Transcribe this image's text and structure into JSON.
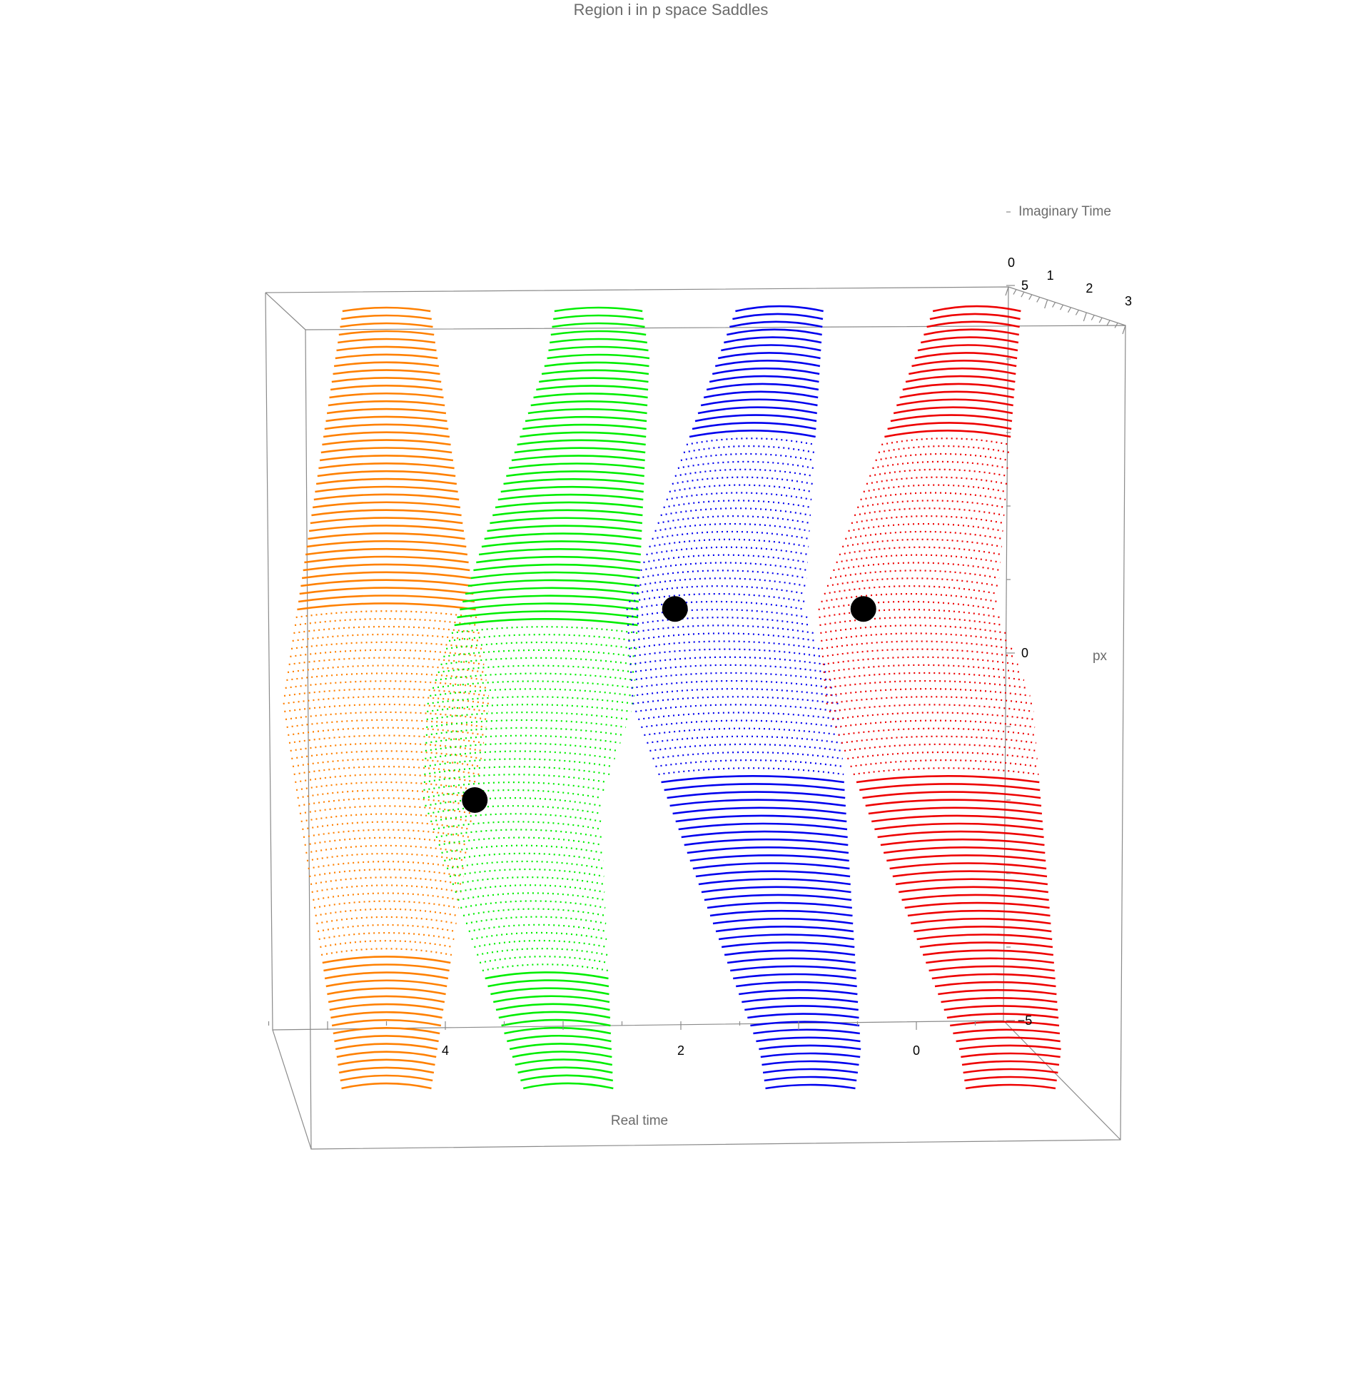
{
  "chart_data": {
    "type": "line",
    "title": "Region i in p space Saddles",
    "xlabel": "Real time",
    "ylabel": "Imaginary Time",
    "zlabel": "px",
    "x_ticks": [
      "4",
      "2",
      "0"
    ],
    "x_tick_values": [
      4,
      2,
      0
    ],
    "y_ticks": [
      "0",
      "1",
      "2",
      "3"
    ],
    "y_tick_values": [
      0,
      1,
      2,
      3
    ],
    "z_ticks": [
      "5",
      "0",
      "−5"
    ],
    "z_tick_values": [
      5,
      0,
      -5
    ],
    "xlim": [
      -0.8,
      5.5
    ],
    "ylim": [
      0,
      3
    ],
    "zlim": [
      -6.5,
      6.5
    ],
    "grid": false,
    "series": [
      {
        "color": "#ff8000",
        "real_time_center": 4.5,
        "saddle": null
      },
      {
        "color": "#00ee00",
        "real_time_center": 2.7,
        "saddle": {
          "real_time": 3.75,
          "px": -2.0
        }
      },
      {
        "color": "#0000ee",
        "real_time_center": 0.9,
        "saddle": {
          "real_time": 2.05,
          "px": 0.6
        }
      },
      {
        "color": "#ee0000",
        "real_time_center": -0.8,
        "saddle": {
          "real_time": 0.45,
          "px": 0.6
        }
      }
    ],
    "saddle_marker_color": "#000000"
  }
}
